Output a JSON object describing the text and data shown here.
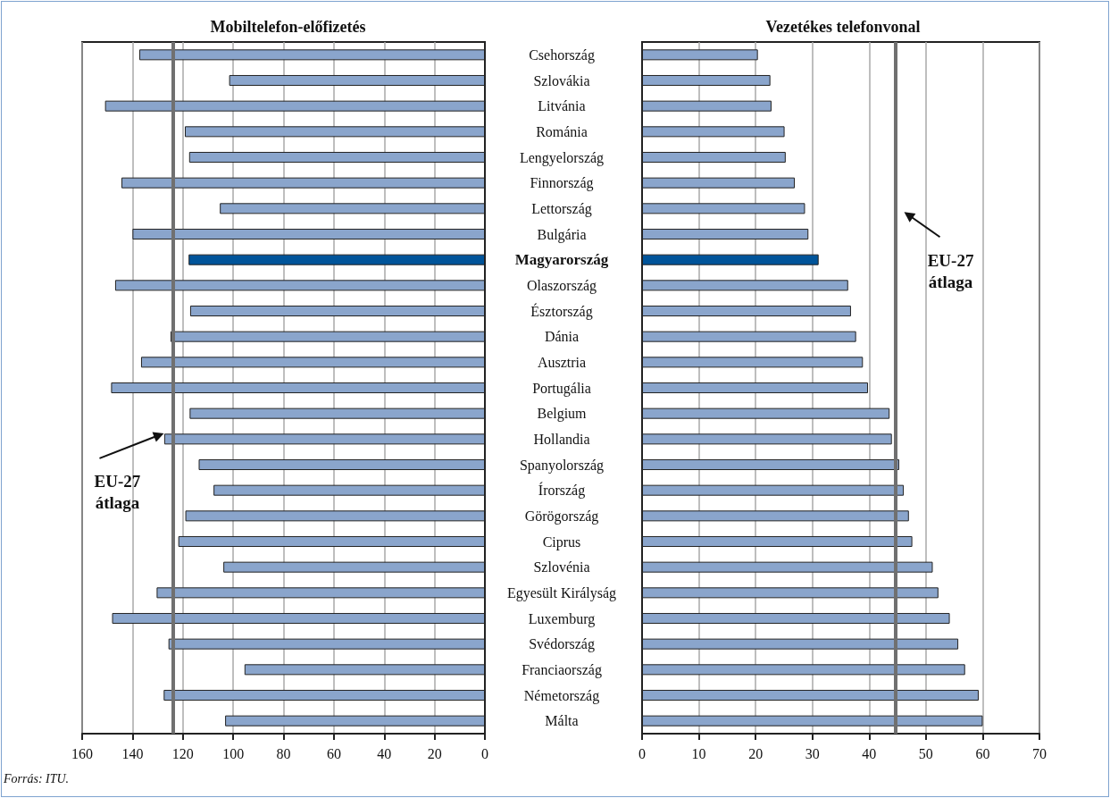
{
  "chart_data": [
    {
      "type": "bar",
      "orientation": "horizontal",
      "title": "Mobiltelefon-előfizetés",
      "categories": [
        "Csehország",
        "Szlovákia",
        "Litvánia",
        "Románia",
        "Lengyelország",
        "Finnország",
        "Lettország",
        "Bulgária",
        "Magyarország",
        "Olaszország",
        "Észtország",
        "Dánia",
        "Ausztria",
        "Portugália",
        "Belgium",
        "Hollandia",
        "Spanyolország",
        "Írország",
        "Görögország",
        "Ciprus",
        "Szlovénia",
        "Egyesült Királyság",
        "Luxemburg",
        "Svédország",
        "Franciaország",
        "Németország",
        "Málta"
      ],
      "values": [
        137.3,
        101.6,
        150.9,
        119.2,
        117.5,
        144.4,
        105.3,
        140.0,
        117.7,
        146.9,
        117.1,
        124.9,
        136.6,
        148.5,
        117.3,
        127.4,
        113.7,
        107.8,
        119.0,
        121.8,
        103.9,
        130.4,
        148.1,
        125.7,
        95.5,
        127.6,
        103.2
      ],
      "colors": [
        "#8aa5cc",
        "#8aa5cc",
        "#8aa5cc",
        "#8aa5cc",
        "#8aa5cc",
        "#8aa5cc",
        "#8aa5cc",
        "#8aa5cc",
        "#00549a",
        "#8aa5cc",
        "#8aa5cc",
        "#8aa5cc",
        "#8aa5cc",
        "#8aa5cc",
        "#8aa5cc",
        "#8aa5cc",
        "#8aa5cc",
        "#8aa5cc",
        "#8aa5cc",
        "#8aa5cc",
        "#8aa5cc",
        "#8aa5cc",
        "#8aa5cc",
        "#8aa5cc",
        "#8aa5cc",
        "#8aa5cc",
        "#8aa5cc"
      ],
      "xlim": [
        160,
        0
      ],
      "xticks": [
        160,
        140,
        120,
        100,
        80,
        60,
        40,
        20,
        0
      ],
      "grid": "x",
      "ref_lines": [
        {
          "axis": "x",
          "value": 124,
          "label": "EU-27 átlaga",
          "color": "#707070"
        }
      ],
      "annotations": [
        "Forrás: ITU."
      ]
    },
    {
      "type": "bar",
      "orientation": "horizontal",
      "title": "Vezetékes telefonvonal",
      "categories": [
        null,
        null,
        null,
        null,
        null,
        null,
        null,
        null,
        null,
        null,
        null,
        null,
        null,
        null,
        null,
        null,
        null,
        null,
        null,
        null,
        null,
        null,
        null,
        null,
        null,
        null,
        null
      ],
      "values": [
        20.4,
        22.6,
        22.8,
        25.1,
        25.3,
        26.9,
        28.7,
        29.3,
        31.1,
        36.3,
        36.8,
        37.7,
        38.9,
        39.8,
        43.6,
        44.0,
        45.3,
        46.1,
        47.0,
        47.6,
        51.2,
        52.2,
        54.2,
        55.7,
        56.9,
        59.3,
        60.0
      ],
      "colors": [
        "#8aa5cc",
        "#8aa5cc",
        "#8aa5cc",
        "#8aa5cc",
        "#8aa5cc",
        "#8aa5cc",
        "#8aa5cc",
        "#8aa5cc",
        "#00549a",
        "#8aa5cc",
        "#8aa5cc",
        "#8aa5cc",
        "#8aa5cc",
        "#8aa5cc",
        "#8aa5cc",
        "#8aa5cc",
        "#8aa5cc",
        "#8aa5cc",
        "#8aa5cc",
        "#8aa5cc",
        "#8aa5cc",
        "#8aa5cc",
        "#8aa5cc",
        "#8aa5cc",
        "#8aa5cc",
        "#8aa5cc",
        "#8aa5cc"
      ],
      "xlim": [
        0,
        70
      ],
      "xticks": [
        0,
        10,
        20,
        30,
        40,
        50,
        60,
        70
      ],
      "grid": "x",
      "tick_labels": "x",
      "ref_lines": [
        {
          "axis": "x",
          "value": 44.6,
          "label": "EU-27 átlaga",
          "color": "#707070"
        }
      ]
    }
  ]
}
